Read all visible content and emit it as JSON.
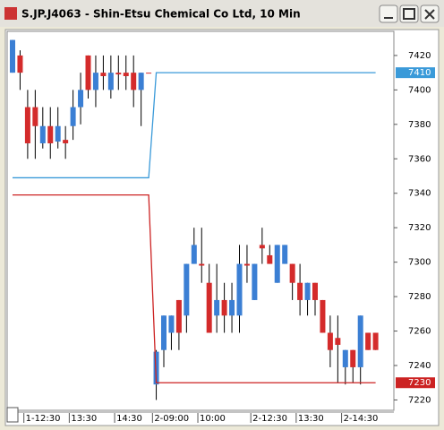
{
  "chart_data": {
    "type": "candlestick",
    "title": "S.JP.J4063 - Shin-Etsu Chemical Co Ltd, 10 Min",
    "categories": [
      null,
      null,
      "1-12:30",
      null,
      null,
      null,
      null,
      null,
      "13:30",
      null,
      null,
      null,
      null,
      null,
      "14:30",
      null,
      null,
      null,
      null,
      "2-09:00",
      null,
      null,
      null,
      null,
      null,
      "10:00",
      null,
      null,
      null,
      null,
      null,
      null,
      "2-12:30",
      null,
      null,
      null,
      null,
      null,
      "13:30",
      null,
      null,
      null,
      null,
      null,
      "2-14:30",
      null,
      null,
      null,
      null
    ],
    "open": [
      7410,
      7420,
      7390,
      7390,
      7369,
      7379,
      7370,
      7371,
      7379,
      7390,
      7420,
      7400,
      7410,
      7400,
      7410,
      7410,
      7410,
      7400,
      7410,
      7229,
      7249,
      7259,
      7278,
      7269,
      7299,
      7299,
      7288,
      7269,
      7278,
      7269,
      7269,
      7299,
      7278,
      7310,
      7304,
      7288,
      7299,
      7299,
      7288,
      7278,
      7288,
      7278,
      7259,
      7256,
      7239,
      7249,
      7239,
      7259,
      7259
    ],
    "high": [
      7429,
      7423,
      7400,
      7400,
      7390,
      7390,
      7390,
      7379,
      7400,
      7410,
      7420,
      7420,
      7420,
      7420,
      7420,
      7420,
      7420,
      7410,
      7410,
      7249,
      7269,
      7269,
      7278,
      7299,
      7320,
      7320,
      7299,
      7299,
      7288,
      7288,
      7310,
      7310,
      7299,
      7320,
      7310,
      7310,
      7310,
      7299,
      7299,
      7288,
      7288,
      7278,
      7269,
      7269,
      7249,
      7249,
      7269,
      7259,
      7259
    ],
    "low": [
      7410,
      7400,
      7360,
      7360,
      7366,
      7360,
      7366,
      7360,
      7371,
      7380,
      7395,
      7390,
      7400,
      7395,
      7400,
      7400,
      7390,
      7379,
      7410,
      7220,
      7239,
      7249,
      7249,
      7259,
      7299,
      7288,
      7259,
      7259,
      7259,
      7259,
      7259,
      7288,
      7278,
      7299,
      7299,
      7288,
      7299,
      7278,
      7269,
      7269,
      7269,
      7259,
      7239,
      7230,
      7229,
      7230,
      7229,
      7249,
      7249
    ],
    "close": [
      7429,
      7410,
      7369,
      7379,
      7379,
      7369,
      7379,
      7369,
      7390,
      7400,
      7400,
      7410,
      7408,
      7410,
      7409,
      7408,
      7400,
      7410,
      7410,
      7248,
      7269,
      7269,
      7259,
      7299,
      7310,
      7298,
      7259,
      7278,
      7269,
      7278,
      7299,
      7298,
      7299,
      7308,
      7299,
      7310,
      7310,
      7288,
      7278,
      7288,
      7278,
      7259,
      7249,
      7252,
      7249,
      7239,
      7269,
      7249,
      7249
    ],
    "up_color": "#3b7fd4",
    "down_color": "#d42b2b",
    "series": [
      {
        "color": "#3a9ad9",
        "values": [
          7349,
          7349,
          7349,
          7349,
          7349,
          7349,
          7349,
          7349,
          7349,
          7349,
          7349,
          7349,
          7349,
          7349,
          7349,
          7349,
          7349,
          7349,
          7349,
          7410,
          7410,
          7410,
          7410,
          7410,
          7410,
          7410,
          7410,
          7410,
          7410,
          7410,
          7410,
          7410,
          7410,
          7410,
          7410,
          7410,
          7410,
          7410,
          7410,
          7410,
          7410,
          7410,
          7410,
          7410,
          7410,
          7410,
          7410,
          7410,
          7410
        ]
      },
      {
        "color": "#cc2222",
        "values": [
          7339,
          7339,
          7339,
          7339,
          7339,
          7339,
          7339,
          7339,
          7339,
          7339,
          7339,
          7339,
          7339,
          7339,
          7339,
          7339,
          7339,
          7339,
          7339,
          7230,
          7230,
          7230,
          7230,
          7230,
          7230,
          7230,
          7230,
          7230,
          7230,
          7230,
          7230,
          7230,
          7230,
          7230,
          7230,
          7230,
          7230,
          7230,
          7230,
          7230,
          7230,
          7230,
          7230,
          7230,
          7230,
          7230,
          7230,
          7230,
          7230
        ]
      }
    ],
    "ylim": [
      7214,
      7434
    ],
    "yticks": [
      7220,
      7240,
      7260,
      7280,
      7300,
      7320,
      7340,
      7360,
      7380,
      7400,
      7420
    ]
  }
}
